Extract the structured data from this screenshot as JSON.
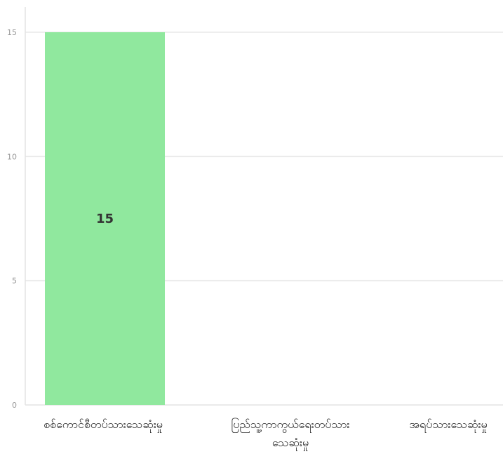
{
  "chart_data": {
    "type": "bar",
    "categories": [
      [
        "စစ်ကောင်စီတပ်သားသေဆုံးမှု"
      ],
      [
        "ပြည်သူ့ကာကွယ်ရေးတပ်သား",
        "သေဆုံးမှု"
      ],
      [
        "အရပ်သားသေဆုံးမှု"
      ]
    ],
    "values": [
      15,
      0,
      0
    ],
    "data_labels": [
      "15",
      "",
      ""
    ],
    "ylim": [
      0,
      16
    ],
    "yticks": [
      0,
      5,
      10,
      15
    ],
    "grid": true,
    "colors": {
      "bar": "#90e89e",
      "grid": "#e9e9e9",
      "axis": "#e3e3e3",
      "tick_text": "#999999",
      "category_text": "#222222",
      "data_label_text": "#333333"
    }
  }
}
